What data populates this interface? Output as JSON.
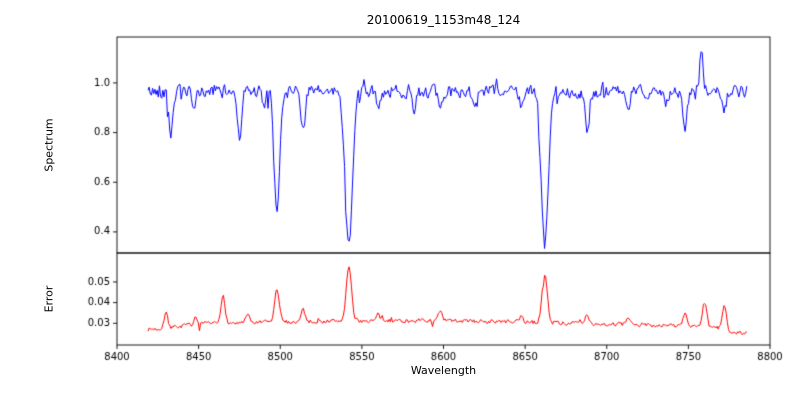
{
  "figure": {
    "background": "#ffffff"
  },
  "chart_data": [
    {
      "type": "line",
      "role": "spectrum-panel",
      "title": "20100619_1153m48_124",
      "ylabel": "Spectrum",
      "xlim": [
        8400,
        8800
      ],
      "ylim": [
        0.315,
        1.185
      ],
      "ytick_values": [
        0.4,
        0.6,
        0.8,
        1.0
      ],
      "ytick_labels": [
        "0.4",
        "0.6",
        "0.8",
        "1.0"
      ],
      "line_color": "#0000ff",
      "x_start": 8419,
      "x_end": 8786,
      "step": 0.7,
      "seed": 42,
      "baseline": 0.965,
      "noise_amp": 0.034,
      "spike_prob": 0.06,
      "absorption_lines": [
        {
          "center": 8433,
          "depth": 0.17,
          "sigma": 1.2
        },
        {
          "center": 8447,
          "depth": 0.08,
          "sigma": 1.2
        },
        {
          "center": 8475,
          "depth": 0.18,
          "sigma": 1.2
        },
        {
          "center": 8490,
          "depth": 0.07,
          "sigma": 1.0
        },
        {
          "center": 8498,
          "depth": 0.5,
          "sigma": 1.6
        },
        {
          "center": 8514,
          "depth": 0.15,
          "sigma": 1.2
        },
        {
          "center": 8542,
          "depth": 0.63,
          "sigma": 2.2
        },
        {
          "center": 8560,
          "depth": 0.06,
          "sigma": 1.0
        },
        {
          "center": 8582,
          "depth": 0.06,
          "sigma": 1.0
        },
        {
          "center": 8598,
          "depth": 0.09,
          "sigma": 1.2
        },
        {
          "center": 8620,
          "depth": 0.06,
          "sigma": 1.0
        },
        {
          "center": 8648,
          "depth": 0.06,
          "sigma": 1.0
        },
        {
          "center": 8662,
          "depth": 0.62,
          "sigma": 2.2
        },
        {
          "center": 8688,
          "depth": 0.185,
          "sigma": 1.2
        },
        {
          "center": 8713,
          "depth": 0.09,
          "sigma": 1.2
        },
        {
          "center": 8736,
          "depth": 0.07,
          "sigma": 1.0
        },
        {
          "center": 8748,
          "depth": 0.17,
          "sigma": 1.2
        },
        {
          "center": 8772,
          "depth": 0.09,
          "sigma": 1.0
        }
      ],
      "emission_spikes": [
        {
          "center": 8758,
          "height": 0.17,
          "sigma": 1.0
        }
      ]
    },
    {
      "type": "line",
      "role": "error-panel",
      "ylabel": "Error",
      "xlabel": "Wavelength",
      "xlim": [
        8400,
        8800
      ],
      "ylim": [
        0.0195,
        0.064
      ],
      "ytick_values": [
        0.03,
        0.04,
        0.05
      ],
      "ytick_labels": [
        "0.03",
        "0.04",
        "0.05"
      ],
      "xtick_values": [
        8400,
        8450,
        8500,
        8550,
        8600,
        8650,
        8700,
        8750,
        8800
      ],
      "xtick_labels": [
        "8400",
        "8450",
        "8500",
        "8550",
        "8600",
        "8650",
        "8700",
        "8750",
        "8800"
      ],
      "line_color": "#ff0000",
      "x_start": 8419,
      "x_end": 8786,
      "step": 0.7,
      "seed": 7,
      "baseline": 0.0278,
      "noise_amp": 0.0013,
      "spike_prob": 0.05,
      "broad_bump": {
        "center": 8575,
        "height": 0.0035,
        "sigma": 110
      },
      "edge_dips": [
        {
          "center": 8419,
          "depth": 0.002,
          "sigma": 15
        },
        {
          "center": 8786,
          "depth": 0.003,
          "sigma": 12
        }
      ],
      "peaks": [
        {
          "center": 8430,
          "height": 0.0075,
          "sigma": 1.2
        },
        {
          "center": 8448,
          "height": 0.003,
          "sigma": 1.0
        },
        {
          "center": 8465,
          "height": 0.014,
          "sigma": 1.2
        },
        {
          "center": 8480,
          "height": 0.004,
          "sigma": 1.0
        },
        {
          "center": 8498,
          "height": 0.016,
          "sigma": 1.4
        },
        {
          "center": 8514,
          "height": 0.006,
          "sigma": 1.2
        },
        {
          "center": 8542,
          "height": 0.026,
          "sigma": 1.6
        },
        {
          "center": 8560,
          "height": 0.003,
          "sigma": 1.0
        },
        {
          "center": 8598,
          "height": 0.004,
          "sigma": 1.2
        },
        {
          "center": 8648,
          "height": 0.003,
          "sigma": 1.0
        },
        {
          "center": 8662,
          "height": 0.023,
          "sigma": 1.6
        },
        {
          "center": 8688,
          "height": 0.004,
          "sigma": 1.2
        },
        {
          "center": 8713,
          "height": 0.003,
          "sigma": 1.0
        },
        {
          "center": 8748,
          "height": 0.006,
          "sigma": 1.2
        },
        {
          "center": 8760,
          "height": 0.011,
          "sigma": 1.2
        },
        {
          "center": 8772,
          "height": 0.012,
          "sigma": 1.2
        }
      ]
    }
  ]
}
